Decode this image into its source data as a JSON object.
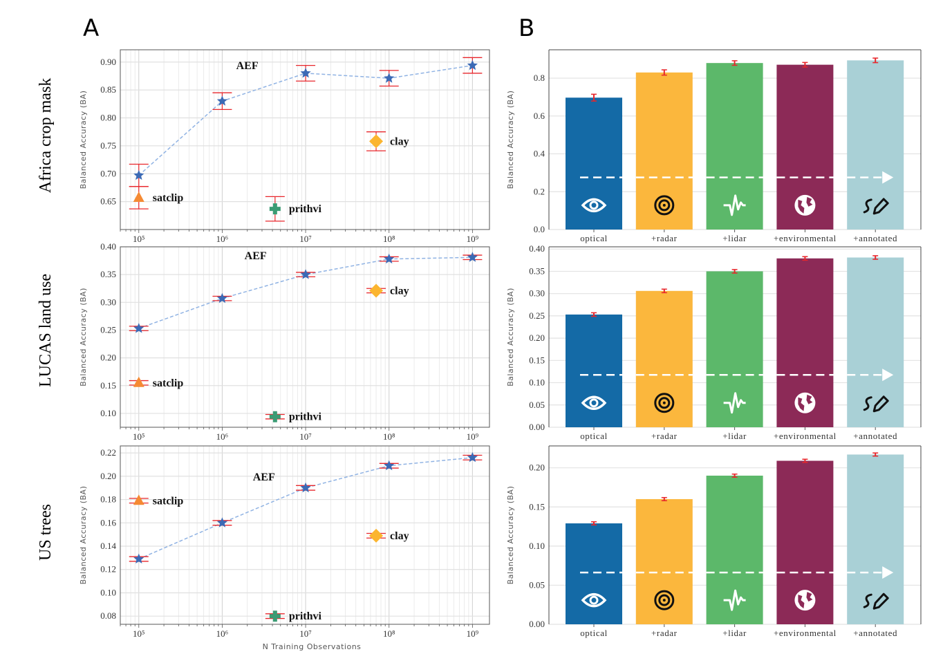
{
  "panel_labels": {
    "a": "A",
    "b": "B"
  },
  "row_titles": [
    "Africa crop mask",
    "LUCAS land use",
    "US trees"
  ],
  "colors": {
    "aef": "#3c6ab5",
    "aef_line": "#8fb2e3",
    "error": "#e8262b",
    "satclip": "#f58a33",
    "prithvi": "#3a9c74",
    "clay": "#fbb52f",
    "bars": [
      "#146aa6",
      "#fbb73d",
      "#5cb86a",
      "#8c2a57",
      "#a9d0d6"
    ]
  },
  "icons": [
    "eye-icon",
    "radar-icon",
    "lidar-waveform-icon",
    "globe-icon",
    "pen-icon"
  ],
  "chart_data": [
    {
      "type": "scatter",
      "title": "Africa crop mask",
      "xscale": "log",
      "grid": true,
      "ylabel": "Balanced Accuracy (BA)",
      "xlabel": "",
      "xlim": [
        60000,
        1600000000
      ],
      "ylim": [
        0.6,
        0.922
      ],
      "xticks": [
        100000,
        1000000,
        10000000,
        100000000,
        1000000000
      ],
      "xtick_labels": [
        "10⁵",
        "10⁶",
        "10⁷",
        "10⁸",
        "10⁹"
      ],
      "yticks": [
        0.65,
        0.7,
        0.75,
        0.8,
        0.85,
        0.9
      ],
      "ytick_labels": [
        "0.65",
        "0.70",
        "0.75",
        "0.80",
        "0.85",
        "0.90"
      ],
      "aef": {
        "label": "AEF",
        "x": [
          100000,
          1000000,
          10000000,
          100000000,
          1000000000
        ],
        "y": [
          0.697,
          0.83,
          0.88,
          0.871,
          0.894
        ],
        "err": [
          0.02,
          0.015,
          0.014,
          0.014,
          0.014
        ]
      },
      "baselines": [
        {
          "label": "satclip",
          "marker": "triangle",
          "x": 100000,
          "y": 0.657,
          "err": 0.02
        },
        {
          "label": "prithvi",
          "marker": "plus",
          "x": 4300000,
          "y": 0.637,
          "err": 0.022
        },
        {
          "label": "clay",
          "marker": "diamond",
          "x": 70000000,
          "y": 0.758,
          "err": 0.017
        }
      ]
    },
    {
      "type": "scatter",
      "title": "LUCAS land use",
      "xscale": "log",
      "grid": true,
      "ylabel": "Balanced Accuracy (BA)",
      "xlabel": "",
      "xlim": [
        60000,
        1600000000
      ],
      "ylim": [
        0.075,
        0.4
      ],
      "xticks": [
        100000,
        1000000,
        10000000,
        100000000,
        1000000000
      ],
      "xtick_labels": [
        "10⁵",
        "10⁶",
        "10⁷",
        "10⁸",
        "10⁹"
      ],
      "yticks": [
        0.1,
        0.15,
        0.2,
        0.25,
        0.3,
        0.35,
        0.4
      ],
      "ytick_labels": [
        "0.10",
        "0.15",
        "0.20",
        "0.25",
        "0.30",
        "0.35",
        "0.40"
      ],
      "aef": {
        "label": "AEF",
        "x": [
          100000,
          1000000,
          10000000,
          100000000,
          1000000000
        ],
        "y": [
          0.253,
          0.307,
          0.35,
          0.378,
          0.381
        ],
        "err": [
          0.004,
          0.004,
          0.004,
          0.004,
          0.004
        ]
      },
      "baselines": [
        {
          "label": "satclip",
          "marker": "triangle",
          "x": 100000,
          "y": 0.155,
          "err": 0.004
        },
        {
          "label": "prithvi",
          "marker": "plus",
          "x": 4300000,
          "y": 0.094,
          "err": 0.004
        },
        {
          "label": "clay",
          "marker": "diamond",
          "x": 70000000,
          "y": 0.321,
          "err": 0.004
        }
      ]
    },
    {
      "type": "scatter",
      "title": "US trees",
      "xscale": "log",
      "grid": true,
      "ylabel": "Balanced Accuracy (BA)",
      "xlabel": "N Training Observations",
      "xlim": [
        60000,
        1600000000
      ],
      "ylim": [
        0.073,
        0.226
      ],
      "xticks": [
        100000,
        1000000,
        10000000,
        100000000,
        1000000000
      ],
      "xtick_labels": [
        "10⁵",
        "10⁶",
        "10⁷",
        "10⁸",
        "10⁹"
      ],
      "yticks": [
        0.08,
        0.1,
        0.12,
        0.14,
        0.16,
        0.18,
        0.2,
        0.22
      ],
      "ytick_labels": [
        "0.08",
        "0.10",
        "0.12",
        "0.14",
        "0.16",
        "0.18",
        "0.20",
        "0.22"
      ],
      "aef": {
        "label": "AEF",
        "x": [
          100000,
          1000000,
          10000000,
          100000000,
          1000000000
        ],
        "y": [
          0.129,
          0.16,
          0.19,
          0.209,
          0.216
        ],
        "err": [
          0.002,
          0.002,
          0.002,
          0.002,
          0.002
        ]
      },
      "baselines": [
        {
          "label": "satclip",
          "marker": "triangle",
          "x": 100000,
          "y": 0.179,
          "err": 0.002
        },
        {
          "label": "prithvi",
          "marker": "plus",
          "x": 4300000,
          "y": 0.08,
          "err": 0.002
        },
        {
          "label": "clay",
          "marker": "diamond",
          "x": 70000000,
          "y": 0.149,
          "err": 0.002
        }
      ]
    },
    {
      "type": "bar",
      "title": "Africa crop mask",
      "ylabel": "Balanced Accuracy (BA)",
      "grid": true,
      "categories": [
        "optical",
        "+radar",
        "+lidar",
        "+environmental",
        "+annotated"
      ],
      "values": [
        0.697,
        0.83,
        0.88,
        0.871,
        0.894
      ],
      "err": [
        0.018,
        0.014,
        0.012,
        0.012,
        0.012
      ],
      "ylim": [
        0,
        0.95
      ],
      "yticks": [
        0.0,
        0.2,
        0.4,
        0.6,
        0.8
      ],
      "ytick_labels": [
        "0.0",
        "0.2",
        "0.4",
        "0.6",
        "0.8"
      ]
    },
    {
      "type": "bar",
      "title": "LUCAS land use",
      "ylabel": "Balanced Accuracy (BA)",
      "grid": true,
      "categories": [
        "optical",
        "+radar",
        "+lidar",
        "+environmental",
        "+annotated"
      ],
      "values": [
        0.253,
        0.306,
        0.35,
        0.379,
        0.381
      ],
      "err": [
        0.004,
        0.004,
        0.004,
        0.004,
        0.004
      ],
      "ylim": [
        0,
        0.405
      ],
      "yticks": [
        0.0,
        0.05,
        0.1,
        0.15,
        0.2,
        0.25,
        0.3,
        0.35,
        0.4
      ],
      "ytick_labels": [
        "0.00",
        "0.05",
        "0.10",
        "0.15",
        "0.20",
        "0.25",
        "0.30",
        "0.35",
        "0.40"
      ]
    },
    {
      "type": "bar",
      "title": "US trees",
      "ylabel": "Balanced Accuracy (BA)",
      "grid": true,
      "categories": [
        "optical",
        "+radar",
        "+lidar",
        "+environmental",
        "+annotated"
      ],
      "values": [
        0.129,
        0.16,
        0.19,
        0.209,
        0.217
      ],
      "err": [
        0.002,
        0.002,
        0.002,
        0.002,
        0.002
      ],
      "ylim": [
        0,
        0.228
      ],
      "yticks": [
        0.0,
        0.05,
        0.1,
        0.15,
        0.2
      ],
      "ytick_labels": [
        "0.00",
        "0.05",
        "0.10",
        "0.15",
        "0.20"
      ]
    }
  ]
}
